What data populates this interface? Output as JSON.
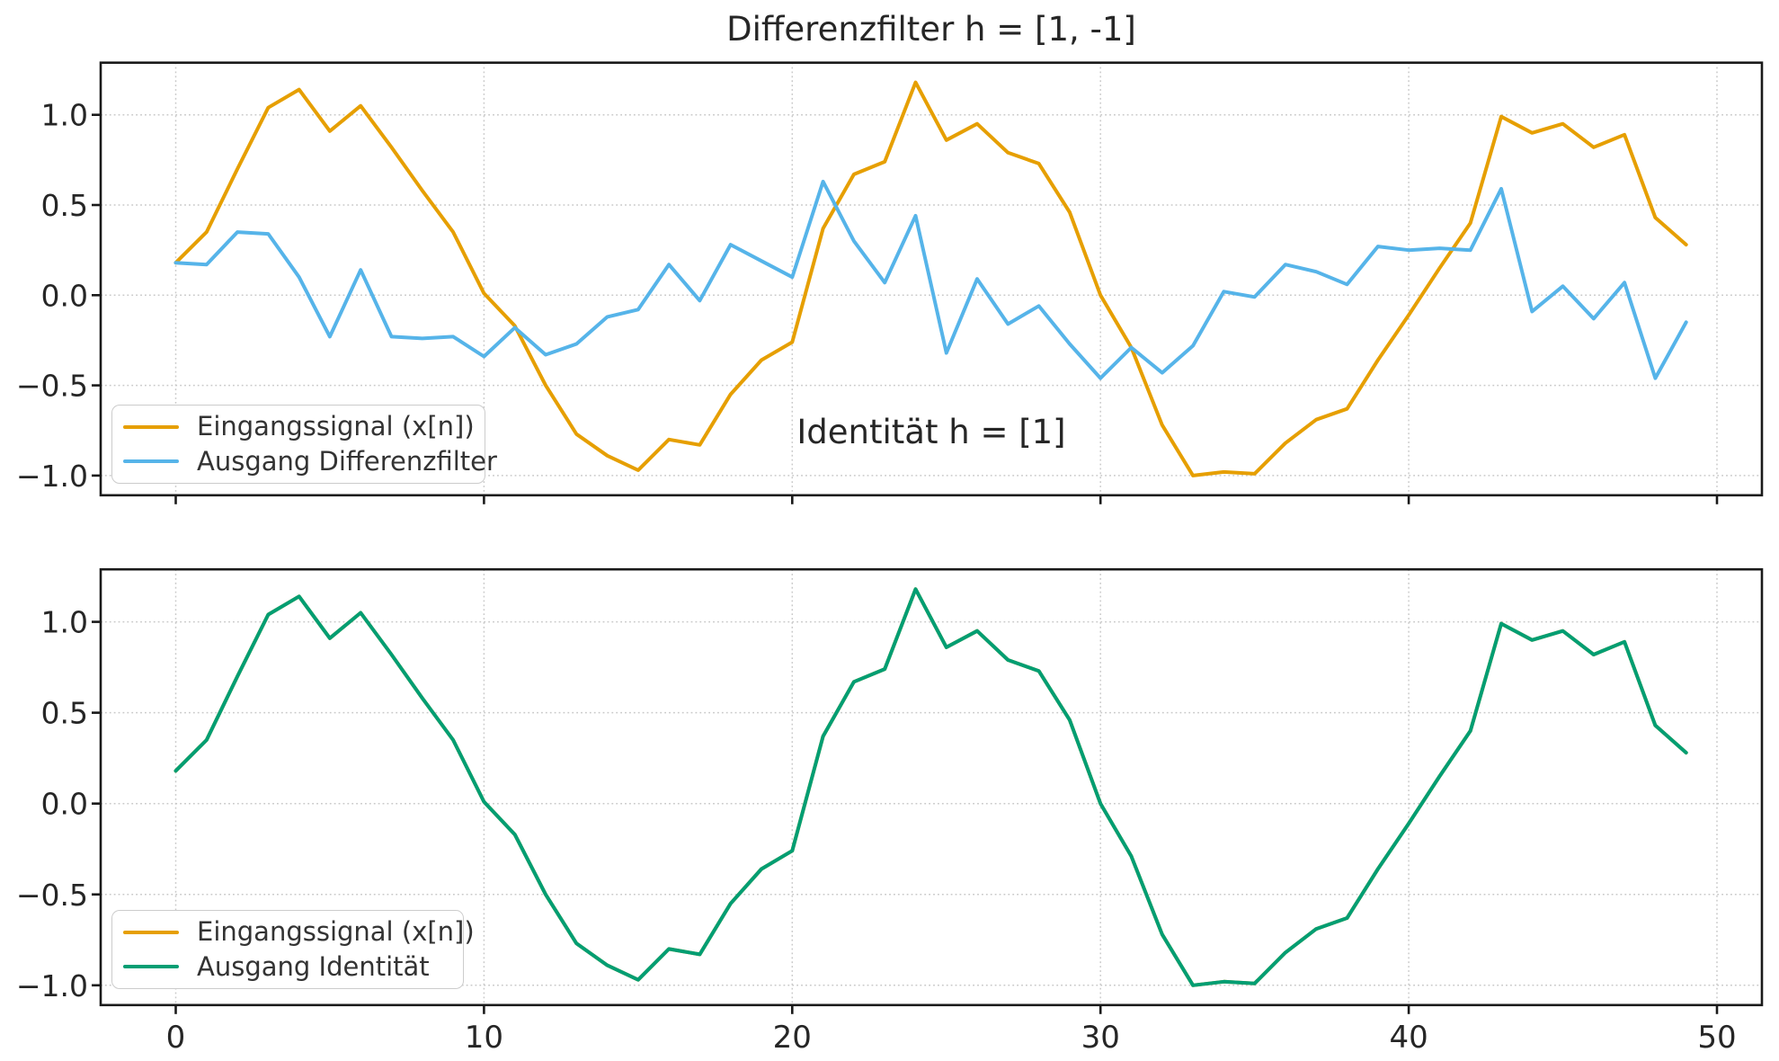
{
  "figure": {
    "background": "#ffffff",
    "text_color": "#262626",
    "spine_color": "#1a1a1a",
    "grid_color": "#c9c9c9",
    "x_ticks": [
      0,
      10,
      20,
      30,
      40,
      50
    ],
    "x_tick_labels": [
      "0",
      "10",
      "20",
      "30",
      "40",
      "50"
    ],
    "y_ticks": [
      1.0,
      0.5,
      0.0,
      -0.5,
      -1.0
    ],
    "y_tick_labels": [
      "1.0",
      "0.5",
      "0.0",
      "−0.5",
      "−1.0"
    ]
  },
  "chart_data": [
    {
      "type": "line",
      "title": "Differenzfilter h = [1, -1]",
      "xlabel": "",
      "ylabel": "",
      "xlim": [
        -2.45,
        51.45
      ],
      "ylim": [
        -1.11,
        1.29
      ],
      "grid": true,
      "legend_position": "lower left",
      "x": [
        0,
        1,
        2,
        3,
        4,
        5,
        6,
        7,
        8,
        9,
        10,
        11,
        12,
        13,
        14,
        15,
        16,
        17,
        18,
        19,
        20,
        21,
        22,
        23,
        24,
        25,
        26,
        27,
        28,
        29,
        30,
        31,
        32,
        33,
        34,
        35,
        36,
        37,
        38,
        39,
        40,
        41,
        42,
        43,
        44,
        45,
        46,
        47,
        48,
        49
      ],
      "series": [
        {
          "name": "Eingangssignal (x[n])",
          "color": "#E69F00",
          "values": [
            0.18,
            0.35,
            0.7,
            1.04,
            1.14,
            0.91,
            1.05,
            0.82,
            0.58,
            0.35,
            0.01,
            -0.17,
            -0.5,
            -0.77,
            -0.89,
            -0.97,
            -0.8,
            -0.83,
            -0.55,
            -0.36,
            -0.26,
            0.37,
            0.67,
            0.74,
            1.18,
            0.86,
            0.95,
            0.79,
            0.73,
            0.46,
            0.0,
            -0.29,
            -0.72,
            -1.0,
            -0.98,
            -0.99,
            -0.82,
            -0.69,
            -0.63,
            -0.36,
            -0.11,
            0.15,
            0.4,
            0.99,
            0.9,
            0.95,
            0.82,
            0.89,
            0.43,
            0.28
          ]
        },
        {
          "name": "Ausgang Differenzfilter",
          "color": "#56B4E9",
          "values": [
            0.18,
            0.17,
            0.35,
            0.34,
            0.1,
            -0.23,
            0.14,
            -0.23,
            -0.24,
            -0.23,
            -0.34,
            -0.18,
            -0.33,
            -0.27,
            -0.12,
            -0.08,
            0.17,
            -0.03,
            0.28,
            0.19,
            0.1,
            0.63,
            0.3,
            0.07,
            0.44,
            -0.32,
            0.09,
            -0.16,
            -0.06,
            -0.27,
            -0.46,
            -0.29,
            -0.43,
            -0.28,
            0.02,
            -0.01,
            0.17,
            0.13,
            0.06,
            0.27,
            0.25,
            0.26,
            0.25,
            0.59,
            -0.09,
            0.05,
            -0.13,
            0.07,
            -0.46,
            -0.15
          ]
        }
      ]
    },
    {
      "type": "line",
      "title": "Identität h = [1]",
      "xlabel": "",
      "ylabel": "",
      "xlim": [
        -2.45,
        51.45
      ],
      "ylim": [
        -1.11,
        1.29
      ],
      "grid": true,
      "legend_position": "lower left",
      "x": [
        0,
        1,
        2,
        3,
        4,
        5,
        6,
        7,
        8,
        9,
        10,
        11,
        12,
        13,
        14,
        15,
        16,
        17,
        18,
        19,
        20,
        21,
        22,
        23,
        24,
        25,
        26,
        27,
        28,
        29,
        30,
        31,
        32,
        33,
        34,
        35,
        36,
        37,
        38,
        39,
        40,
        41,
        42,
        43,
        44,
        45,
        46,
        47,
        48,
        49
      ],
      "series": [
        {
          "name": "Eingangssignal (x[n])",
          "color": "#E69F00",
          "values": [
            0.18,
            0.35,
            0.7,
            1.04,
            1.14,
            0.91,
            1.05,
            0.82,
            0.58,
            0.35,
            0.01,
            -0.17,
            -0.5,
            -0.77,
            -0.89,
            -0.97,
            -0.8,
            -0.83,
            -0.55,
            -0.36,
            -0.26,
            0.37,
            0.67,
            0.74,
            1.18,
            0.86,
            0.95,
            0.79,
            0.73,
            0.46,
            0.0,
            -0.29,
            -0.72,
            -1.0,
            -0.98,
            -0.99,
            -0.82,
            -0.69,
            -0.63,
            -0.36,
            -0.11,
            0.15,
            0.4,
            0.99,
            0.9,
            0.95,
            0.82,
            0.89,
            0.43,
            0.28
          ]
        },
        {
          "name": "Ausgang Identität",
          "color": "#009E73",
          "values": [
            0.18,
            0.35,
            0.7,
            1.04,
            1.14,
            0.91,
            1.05,
            0.82,
            0.58,
            0.35,
            0.01,
            -0.17,
            -0.5,
            -0.77,
            -0.89,
            -0.97,
            -0.8,
            -0.83,
            -0.55,
            -0.36,
            -0.26,
            0.37,
            0.67,
            0.74,
            1.18,
            0.86,
            0.95,
            0.79,
            0.73,
            0.46,
            0.0,
            -0.29,
            -0.72,
            -1.0,
            -0.98,
            -0.99,
            -0.82,
            -0.69,
            -0.63,
            -0.36,
            -0.11,
            0.15,
            0.4,
            0.99,
            0.9,
            0.95,
            0.82,
            0.89,
            0.43,
            0.28
          ]
        }
      ]
    }
  ]
}
